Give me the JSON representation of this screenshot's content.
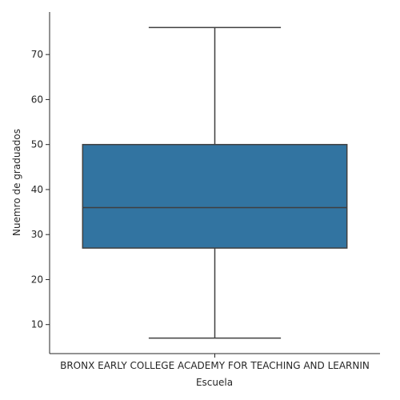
{
  "chart_data": {
    "type": "box",
    "xlabel": "Escuela",
    "ylabel": "Nuemro de graduados",
    "categories": [
      "BRONX EARLY COLLEGE ACADEMY FOR TEACHING AND LEARNIN"
    ],
    "boxes": [
      {
        "category": "BRONX EARLY COLLEGE ACADEMY FOR TEACHING AND LEARNIN",
        "min": 7,
        "q1": 27,
        "median": 36,
        "q3": 50,
        "max": 76
      }
    ],
    "yticks": [
      10,
      20,
      30,
      40,
      50,
      60,
      70
    ],
    "ylim": [
      3.55,
      79.45
    ],
    "grid": false,
    "colors": {
      "box_fill": "#3274a1",
      "line": "#3f3f3f",
      "axis": "#262626"
    }
  }
}
